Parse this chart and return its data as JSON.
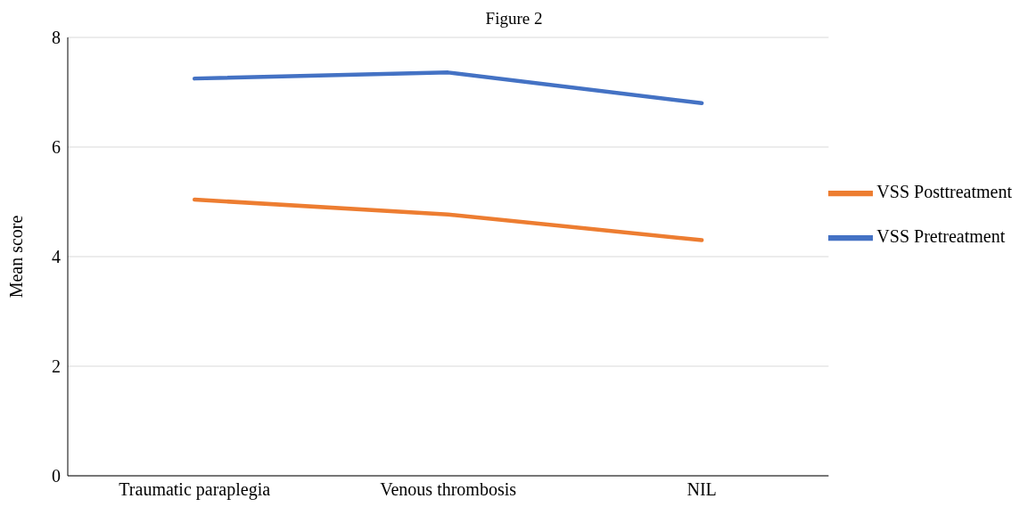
{
  "chart_data": {
    "type": "line",
    "title": "Figure 2",
    "ylabel": "Mean score",
    "categories": [
      "Traumatic paraplegia",
      "Venous thrombosis",
      "NIL"
    ],
    "series": [
      {
        "name": "VSS Pretreatment",
        "color": "#4472c4",
        "values": [
          7.25,
          7.36,
          6.8
        ]
      },
      {
        "name": "VSS Posttreatment",
        "color": "#ed7d31",
        "values": [
          5.04,
          4.77,
          4.3
        ]
      }
    ],
    "ylim": [
      0,
      8
    ],
    "yticks": [
      0,
      2,
      4,
      6,
      8
    ],
    "grid": "y",
    "legend": "right",
    "marker": "none",
    "line_style": "solid"
  }
}
